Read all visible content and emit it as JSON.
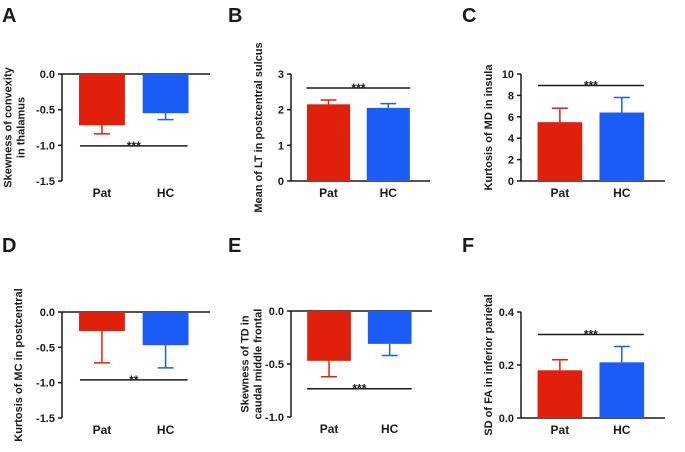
{
  "colors": {
    "pat": "#e0200a",
    "hc": "#1a5cf5",
    "axis": "#1a1a1a"
  },
  "chart_data": [
    {
      "panel": "A",
      "type": "bar",
      "categories": [
        "Pat",
        "HC"
      ],
      "values": [
        -0.72,
        -0.55
      ],
      "errors": [
        0.12,
        0.09
      ],
      "ylabel": [
        "Skewness of convexity",
        "in thalamus"
      ],
      "ylim": [
        -1.5,
        0.0
      ],
      "ticks": [
        0.0,
        -0.5,
        -1.0,
        -1.5
      ],
      "tick_labels": [
        "0.0",
        "-0.5",
        "-1.0",
        "-1.5"
      ],
      "significance": "***",
      "baseline_at_top": true
    },
    {
      "panel": "B",
      "type": "bar",
      "categories": [
        "Pat",
        "HC"
      ],
      "values": [
        2.15,
        2.05
      ],
      "errors": [
        0.12,
        0.12
      ],
      "ylabel": [
        "Mean of LT in postcentral sulcus"
      ],
      "ylim": [
        0,
        3
      ],
      "ticks": [
        0,
        1,
        2,
        3
      ],
      "tick_labels": [
        "0",
        "1",
        "2",
        "3"
      ],
      "significance": "***",
      "baseline_at_top": false
    },
    {
      "panel": "C",
      "type": "bar",
      "categories": [
        "Pat",
        "HC"
      ],
      "values": [
        5.5,
        6.4
      ],
      "errors": [
        1.3,
        1.4
      ],
      "ylabel": [
        "Kurtosis of MD in insula"
      ],
      "ylim": [
        0,
        10
      ],
      "ticks": [
        0,
        2,
        4,
        6,
        8,
        10
      ],
      "tick_labels": [
        "0",
        "2",
        "4",
        "6",
        "8",
        "10"
      ],
      "significance": "***",
      "baseline_at_top": false
    },
    {
      "panel": "D",
      "type": "bar",
      "categories": [
        "Pat",
        "HC"
      ],
      "values": [
        -0.27,
        -0.47
      ],
      "errors": [
        0.45,
        0.32
      ],
      "ylabel": [
        "Kurtosis of MC in postcentral"
      ],
      "ylim": [
        -1.5,
        0.0
      ],
      "ticks": [
        0.0,
        -0.5,
        -1.0,
        -1.5
      ],
      "tick_labels": [
        "0.0",
        "-0.5",
        "-1.0",
        "-1.5"
      ],
      "significance": "**",
      "baseline_at_top": true
    },
    {
      "panel": "E",
      "type": "bar",
      "categories": [
        "Pat",
        "HC"
      ],
      "values": [
        -0.47,
        -0.31
      ],
      "errors": [
        0.15,
        0.11
      ],
      "ylabel": [
        "Skewness of TD in",
        "caudal middle frontal"
      ],
      "ylim": [
        -1.0,
        0.0
      ],
      "ticks": [
        0.0,
        -0.5,
        -1.0
      ],
      "tick_labels": [
        "0.0",
        "-0.5",
        "-1.0"
      ],
      "significance": "***",
      "baseline_at_top": true
    },
    {
      "panel": "F",
      "type": "bar",
      "categories": [
        "Pat",
        "HC"
      ],
      "values": [
        0.18,
        0.21
      ],
      "errors": [
        0.04,
        0.06
      ],
      "ylabel": [
        "SD of FA in inferior parietal"
      ],
      "ylim": [
        0.0,
        0.4
      ],
      "ticks": [
        0.0,
        0.2,
        0.4
      ],
      "tick_labels": [
        "0.0",
        "0.2",
        "0.4"
      ],
      "significance": "***",
      "baseline_at_top": false
    }
  ]
}
